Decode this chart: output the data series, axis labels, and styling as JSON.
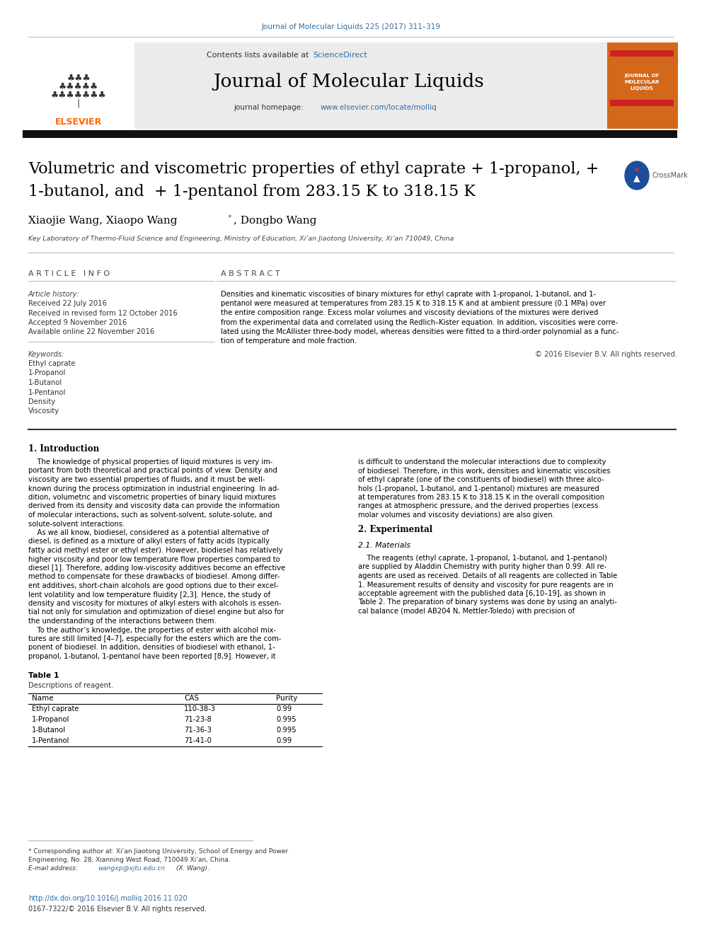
{
  "page_width": 9.92,
  "page_height": 13.23,
  "bg_color": "#ffffff",
  "header_journal_text": "Journal of Molecular Liquids 225 (2017) 311–319",
  "header_journal_color": "#2E6DA4",
  "banner_bg": "#e8e8e8",
  "banner_sciencedirect_color": "#2E6DA4",
  "banner_journal_title": "Journal of Molecular Liquids",
  "banner_url": "www.elsevier.com/locate/molliq",
  "banner_url_color": "#2E6DA4",
  "paper_title_line1": "Volumetric and viscometric properties of ethyl caprate + 1-propanol, +",
  "paper_title_line2": "1-butanol, and  + 1-pentanol from 283.15 K to 318.15 K",
  "affiliation": "Key Laboratory of Thermo-Fluid Science and Engineering, Ministry of Education, Xi’an Jiaotong University, Xi’an 710049, China",
  "article_info_header": "A R T I C L E   I N F O",
  "abstract_header": "A B S T R A C T",
  "article_history_label": "Article history:",
  "received": "Received 22 July 2016",
  "revised": "Received in revised form 12 October 2016",
  "accepted": "Accepted 9 November 2016",
  "available": "Available online 22 November 2016",
  "keywords_label": "Keywords:",
  "keywords": [
    "Ethyl caprate",
    "1-Propanol",
    "1-Butanol",
    "1-Pentanol",
    "Density",
    "Viscosity"
  ],
  "copyright": "© 2016 Elsevier B.V. All rights reserved.",
  "table1_headers": [
    "Name",
    "CAS",
    "Purity"
  ],
  "table1_data": [
    [
      "Ethyl caprate",
      "110-38-3",
      "0.99"
    ],
    [
      "1-Propanol",
      "71-23-8",
      "0.995"
    ],
    [
      "1-Butanol",
      "71-36-3",
      "0.995"
    ],
    [
      "1-Pentanol",
      "71-41-0",
      "0.99"
    ]
  ],
  "footnote1": "* Corresponding author at: Xi’an Jiaotong University, School of Energy and Power",
  "footnote2": "Engineering, No. 28, Xianning West Road, 710049 Xi’an, China.",
  "footnote_email_color": "#2E6DA4",
  "footer1": "http://dx.doi.org/10.1016/j.molliq.2016.11.020",
  "footer1_color": "#2E6DA4",
  "footer2": "0167-7322/© 2016 Elsevier B.V. All rights reserved."
}
